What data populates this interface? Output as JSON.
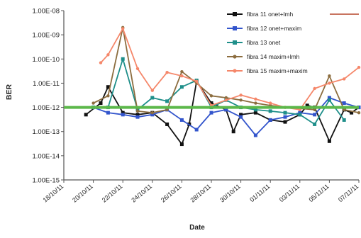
{
  "chart_data": {
    "type": "line",
    "xlabel": "Date",
    "ylabel": "BER",
    "scale_y": "log",
    "ylim": [
      1e-15,
      1e-08
    ],
    "xlim": [
      "2011-10-18",
      "2011-11-07"
    ],
    "grid": "none",
    "legend_position": "top-right",
    "y_tick_labels": [
      "1.00E-08",
      "1.00E-09",
      "1.00E-10",
      "1.00E-11",
      "1.00E-12",
      "1.00E-13",
      "1.00E-14",
      "1.00E-15"
    ],
    "x_tick_labels": [
      "18/10/11",
      "20/10/11",
      "22/10/11",
      "24/10/11",
      "26/10/11",
      "28/10/11",
      "30/10/11",
      "01/11/11",
      "03/11/11",
      "05/11/11",
      "07/11/11"
    ],
    "threshold_line": {
      "y": 1e-12,
      "color": "#5cb84a"
    },
    "series": [
      {
        "name": "fibra 11 onet+lmh",
        "color": "#111111",
        "x": [
          "2011-10-19T12:00",
          "2011-10-20T12:00",
          "2011-10-21",
          "2011-10-22",
          "2011-10-23",
          "2011-10-24",
          "2011-10-25",
          "2011-10-26",
          "2011-10-26T12:00",
          "2011-10-27",
          "2011-10-28",
          "2011-10-29",
          "2011-10-29T12:00",
          "2011-10-30",
          "2011-10-31",
          "2011-11-01",
          "2011-11-02",
          "2011-11-03",
          "2011-11-03T12:00",
          "2011-11-04",
          "2011-11-05",
          "2011-11-06",
          "2011-11-06T12:00",
          "2011-11-07"
        ],
        "y": [
          5e-13,
          1.5e-12,
          7e-12,
          6e-13,
          5e-13,
          6e-13,
          2e-13,
          3e-14,
          2e-13,
          1.2e-11,
          1.5e-12,
          8e-13,
          1e-13,
          5e-13,
          6e-13,
          3e-13,
          2.5e-13,
          5e-13,
          1.2e-12,
          1e-12,
          4e-14,
          8e-13,
          6e-13,
          1e-12
        ]
      },
      {
        "name": "fibra 12 onet+maxim",
        "color": "#3355cc",
        "x": [
          "2011-10-20",
          "2011-10-21",
          "2011-10-22",
          "2011-10-23",
          "2011-10-24",
          "2011-10-25",
          "2011-10-26",
          "2011-10-27",
          "2011-10-28",
          "2011-10-29",
          "2011-10-30",
          "2011-10-31",
          "2011-11-01",
          "2011-11-02",
          "2011-11-03",
          "2011-11-04",
          "2011-11-05",
          "2011-11-06",
          "2011-11-07"
        ],
        "y": [
          1e-12,
          6e-13,
          5e-13,
          4e-13,
          5e-13,
          8e-13,
          3e-13,
          1.2e-13,
          6e-13,
          8e-13,
          4e-13,
          7e-14,
          3e-13,
          4e-13,
          6e-13,
          5e-13,
          2.5e-12,
          1.5e-12,
          1e-12
        ]
      },
      {
        "name": "fibra 13 onet",
        "color": "#1f8f8a",
        "x": [
          "2011-10-20",
          "2011-10-21",
          "2011-10-22",
          "2011-10-23",
          "2011-10-24",
          "2011-10-25",
          "2011-10-26",
          "2011-10-27",
          "2011-10-28",
          "2011-10-29",
          "2011-10-30",
          "2011-10-31",
          "2011-11-01",
          "2011-11-02",
          "2011-11-03",
          "2011-11-04",
          "2011-11-05",
          "2011-11-06"
        ],
        "y": [
          1e-12,
          1e-12,
          1e-10,
          8e-13,
          2.5e-12,
          1.8e-12,
          7e-12,
          1.3e-11,
          1e-12,
          2e-12,
          1e-12,
          8e-13,
          7e-13,
          6e-13,
          5e-13,
          2e-13,
          2e-12,
          3e-13
        ]
      },
      {
        "name": "fibra 14 maxim+lmh",
        "color": "#8c6d3f",
        "x": [
          "2011-10-20",
          "2011-10-21",
          "2011-10-22",
          "2011-10-23",
          "2011-10-24",
          "2011-10-25",
          "2011-10-26",
          "2011-10-27",
          "2011-10-28",
          "2011-10-29",
          "2011-10-30",
          "2011-10-31",
          "2011-11-01",
          "2011-11-02",
          "2011-11-03",
          "2011-11-04",
          "2011-11-05",
          "2011-11-06",
          "2011-11-07"
        ],
        "y": [
          1.5e-12,
          3e-12,
          2e-09,
          7e-13,
          6e-13,
          8e-13,
          3e-11,
          1e-11,
          3e-12,
          2.5e-12,
          2e-12,
          1.5e-12,
          1.2e-12,
          1e-12,
          9e-13,
          8e-13,
          2e-11,
          8e-13,
          6e-13
        ]
      },
      {
        "name": "fibra 15 maxim+maxim",
        "color": "#f5876a",
        "x": [
          "2011-10-20T12:00",
          "2011-10-21",
          "2011-10-22",
          "2011-10-23",
          "2011-10-24",
          "2011-10-25",
          "2011-10-26",
          "2011-10-27",
          "2011-10-28",
          "2011-10-29",
          "2011-10-30",
          "2011-10-31",
          "2011-11-01",
          "2011-11-02",
          "2011-11-03",
          "2011-11-04",
          "2011-11-05",
          "2011-11-06",
          "2011-11-07"
        ],
        "y": [
          7e-11,
          1.5e-10,
          1.8e-09,
          4e-11,
          5e-12,
          2.8e-11,
          2e-11,
          1.2e-11,
          1.2e-12,
          2e-12,
          3.2e-12,
          2.2e-12,
          1.5e-12,
          1e-12,
          8e-13,
          6e-12,
          1e-11,
          1.5e-11,
          4.5e-11
        ]
      }
    ]
  }
}
